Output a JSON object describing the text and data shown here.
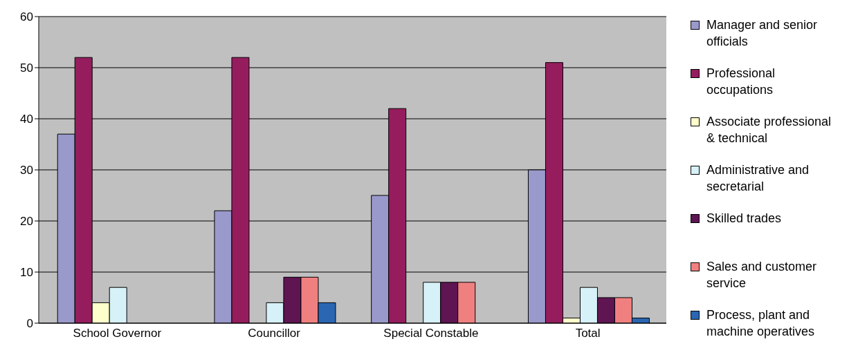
{
  "chart_data": {
    "type": "bar",
    "categories": [
      "School Governor",
      "Councillor",
      "Special Constable",
      "Total"
    ],
    "series": [
      {
        "name": "Manager and senior officials",
        "color": "#9999cc",
        "values": [
          37,
          22,
          25,
          30
        ]
      },
      {
        "name": "Professional occupations",
        "color": "#951d5e",
        "values": [
          52,
          52,
          42,
          51
        ]
      },
      {
        "name": "Associate professional & technical",
        "color": "#ffffcc",
        "values": [
          4,
          null,
          null,
          1
        ]
      },
      {
        "name": "Administrative and secretarial",
        "color": "#d6f1f7",
        "values": [
          7,
          4,
          8,
          7
        ]
      },
      {
        "name": "Skilled trades",
        "color": "#5e1552",
        "values": [
          null,
          9,
          8,
          5
        ]
      },
      {
        "name": "Sales and customer service",
        "color": "#f08080",
        "values": [
          null,
          9,
          8,
          5
        ]
      },
      {
        "name": "Process, plant and machine operatives",
        "color": "#2a66b2",
        "values": [
          null,
          4,
          null,
          1
        ]
      }
    ],
    "ylim": [
      0,
      60
    ],
    "yticks": [
      0,
      10,
      20,
      30,
      40,
      50,
      60
    ],
    "grid": "y",
    "legend": "right"
  }
}
